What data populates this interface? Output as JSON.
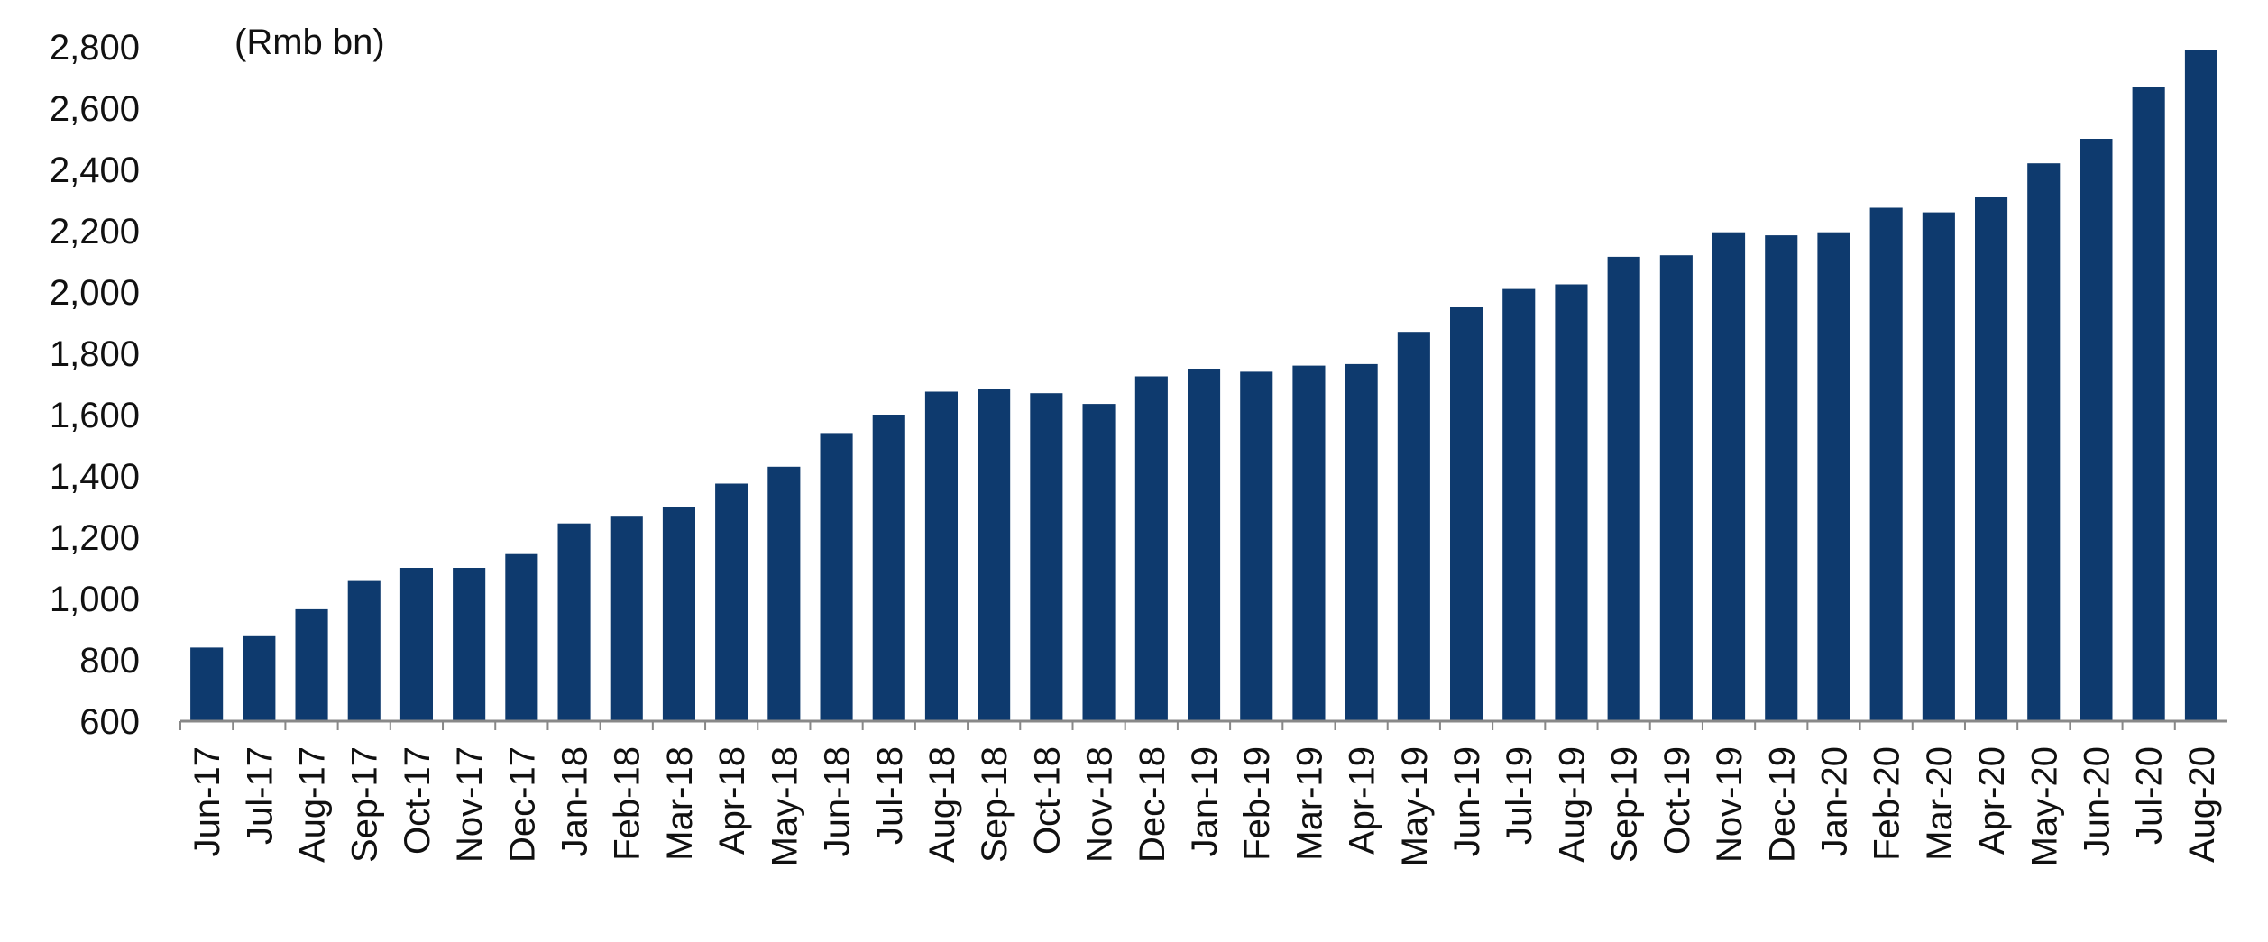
{
  "chart_data": {
    "type": "bar",
    "unit_label": "(Rmb bn)",
    "categories": [
      "Jun-17",
      "Jul-17",
      "Aug-17",
      "Sep-17",
      "Oct-17",
      "Nov-17",
      "Dec-17",
      "Jan-18",
      "Feb-18",
      "Mar-18",
      "Apr-18",
      "May-18",
      "Jun-18",
      "Jul-18",
      "Aug-18",
      "Sep-18",
      "Oct-18",
      "Nov-18",
      "Dec-18",
      "Jan-19",
      "Feb-19",
      "Mar-19",
      "Apr-19",
      "May-19",
      "Jun-19",
      "Jul-19",
      "Aug-19",
      "Sep-19",
      "Oct-19",
      "Nov-19",
      "Dec-19",
      "Jan-20",
      "Feb-20",
      "Mar-20",
      "Apr-20",
      "May-20",
      "Jun-20",
      "Jul-20",
      "Aug-20"
    ],
    "values": [
      840,
      880,
      965,
      1060,
      1100,
      1100,
      1145,
      1245,
      1270,
      1300,
      1375,
      1430,
      1540,
      1600,
      1675,
      1685,
      1670,
      1635,
      1725,
      1750,
      1740,
      1760,
      1765,
      1870,
      1950,
      2010,
      2025,
      2115,
      2120,
      2195,
      2185,
      2195,
      2275,
      2260,
      2310,
      2420,
      2500,
      2670,
      2790
    ],
    "ylim": [
      600,
      2800
    ],
    "yticks": [
      600,
      800,
      1000,
      1200,
      1400,
      1600,
      1800,
      2000,
      2200,
      2400,
      2600,
      2800
    ],
    "ytick_labels": [
      "600",
      "800",
      "1,000",
      "1,200",
      "1,400",
      "1,600",
      "1,800",
      "2,000",
      "2,200",
      "2,400",
      "2,600",
      "2,800"
    ],
    "grid": false,
    "legend": "none",
    "bar_color": "#0e3a6e",
    "axis_color": "#888888"
  }
}
